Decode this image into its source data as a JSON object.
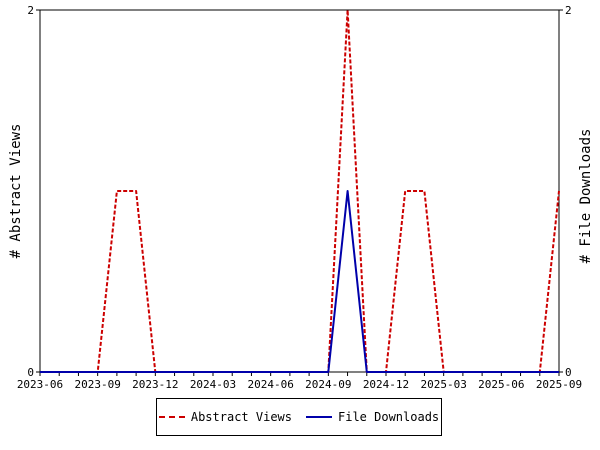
{
  "chart_data": {
    "type": "line",
    "x": [
      "2023-06",
      "2023-07",
      "2023-08",
      "2023-09",
      "2023-10",
      "2023-11",
      "2023-12",
      "2024-01",
      "2024-02",
      "2024-03",
      "2024-04",
      "2024-05",
      "2024-06",
      "2024-07",
      "2024-08",
      "2024-09",
      "2024-10",
      "2024-11",
      "2024-12",
      "2025-01",
      "2025-02",
      "2025-03",
      "2025-04",
      "2025-05",
      "2025-06",
      "2025-07",
      "2025-08",
      "2025-09"
    ],
    "xtick_labels": [
      "2023-06",
      "2023-09",
      "2023-12",
      "2024-03",
      "2024-06",
      "2024-09",
      "2024-12",
      "2025-03",
      "2025-06",
      "2025-09"
    ],
    "series": [
      {
        "name": "Abstract Views",
        "axis": "left",
        "color": "#cc0000",
        "dash": "dashed",
        "values": [
          0,
          0,
          0,
          0,
          1,
          1,
          0,
          0,
          0,
          0,
          0,
          0,
          0,
          0,
          0,
          0,
          2,
          0,
          0,
          1,
          1,
          0,
          0,
          0,
          0,
          0,
          0,
          1
        ]
      },
      {
        "name": "File Downloads",
        "axis": "right",
        "color": "#0000aa",
        "dash": "solid",
        "values": [
          0,
          0,
          0,
          0,
          0,
          0,
          0,
          0,
          0,
          0,
          0,
          0,
          0,
          0,
          0,
          0,
          1,
          0,
          0,
          0,
          0,
          0,
          0,
          0,
          0,
          0,
          0,
          0
        ]
      }
    ],
    "ylabel": "# Abstract Views",
    "y2label": "# File Downloads",
    "ylim": [
      0,
      2
    ],
    "y2lim": [
      0,
      2
    ],
    "yticks": [
      "0",
      "2"
    ],
    "y2ticks": [
      "0",
      "2"
    ],
    "legend_position": "bottom",
    "grid": false
  }
}
